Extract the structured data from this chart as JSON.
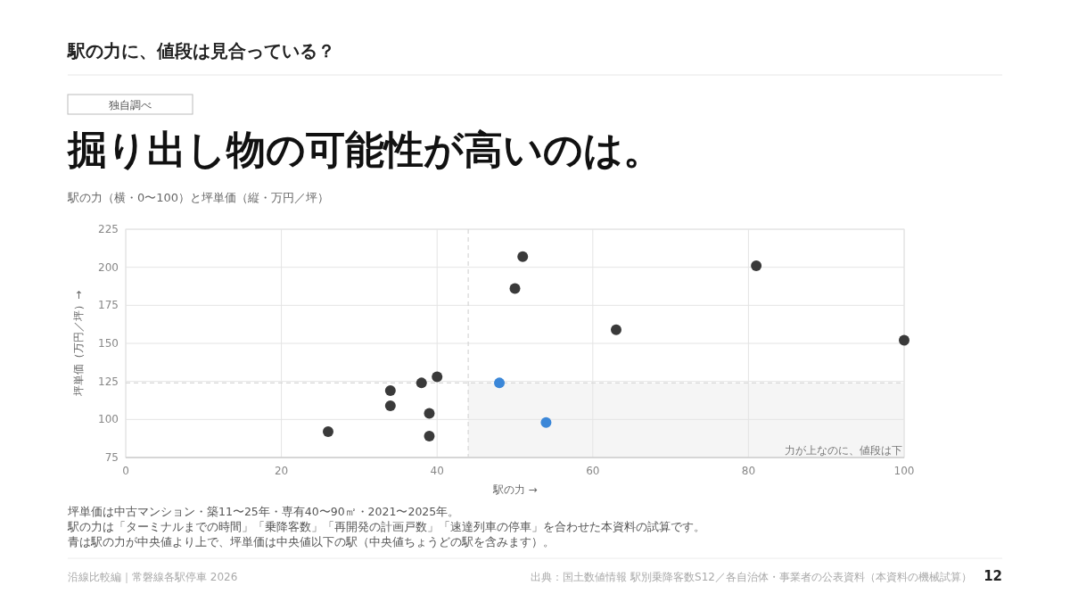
{
  "chart_data": {
    "type": "scatter",
    "title": "掘り出し物の可能性が高いのは。",
    "subtitle": "駅の力（横・0〜100）と坪単価（縦・万円／坪）",
    "xlabel": "駅の力 →",
    "ylabel": "坪単価（万円／坪）→",
    "xlim": [
      0,
      100
    ],
    "xticks": [
      0,
      20,
      40,
      60,
      80,
      100
    ],
    "ylim": [
      75,
      225
    ],
    "yticks": [
      75,
      100,
      125,
      150,
      175,
      200,
      225
    ],
    "grid": true,
    "marker": "circle",
    "series": [
      {
        "color": "#3a3a3a",
        "x": [
          51,
          50,
          81,
          63,
          100,
          40,
          38,
          34,
          34,
          39,
          39,
          26
        ],
        "values": [
          207,
          186,
          201,
          159,
          152,
          128,
          124,
          119,
          109,
          104,
          89,
          92
        ]
      },
      {
        "color": "#3b87d8",
        "x": [
          48,
          54
        ],
        "values": [
          124,
          98
        ]
      }
    ],
    "ref_lines": [
      {
        "axis": "x",
        "value": 44,
        "line_style": "dashed",
        "color": "#d6d6d6"
      },
      {
        "axis": "y",
        "value": 124,
        "line_style": "dashed",
        "color": "#d6d6d6"
      }
    ],
    "bands": [
      {
        "axis": "x",
        "from": 44,
        "to": 100,
        "label": "力が上なのに、値段は下",
        "color": "#f5f5f5"
      }
    ],
    "annotations": [
      "駅の力に、値段は見合っている？",
      "独自調べ",
      "坪単価は中古マンション・築11〜25年・専有40〜90㎡・2021〜2025年。",
      "駅の力は「ターミナルまでの時間」「乗降客数」「再開発の計画戸数」「速達列車の停車」を合わせた本資料の試算です。",
      "青は駅の力が中央値より上で、坪単価は中央値以下の駅（中央値ちょうどの駅を含みます）。",
      "沿線比較編｜常磐線各駅停車 2026",
      "出典：国土数値情報 駅別乗降客数S12／各自治体・事業者の公表資料（本資料の機械試算）",
      "12"
    ]
  }
}
